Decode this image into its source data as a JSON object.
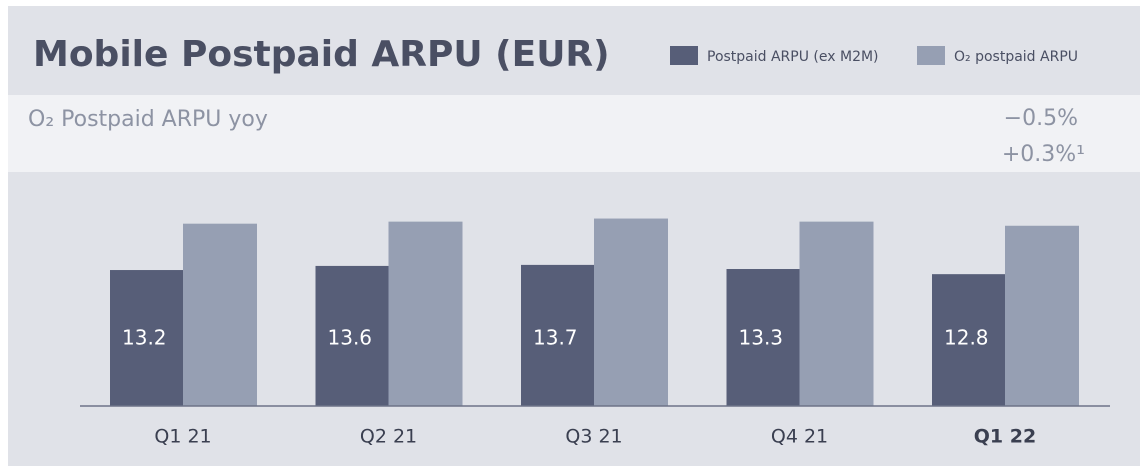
{
  "chart_data": {
    "type": "bar",
    "title": "Mobile Postpaid ARPU (EUR)",
    "annotation": "O₂ Postpaid ARPU yoy",
    "yoy": [
      "−0.5%",
      "+0.3%¹"
    ],
    "categories": [
      "Q1 21",
      "Q2 21",
      "Q3 21",
      "Q4 21",
      "Q1 22"
    ],
    "bold_category": 4,
    "series": [
      {
        "name": "Postpaid ARPU (ex M2M)",
        "color": "#575e78",
        "values": [
          13.2,
          13.6,
          13.7,
          13.3,
          12.8
        ]
      },
      {
        "name": "O₂ postpaid ARPU",
        "color": "#969fb3",
        "values": [
          17.7,
          17.9,
          18.2,
          17.9,
          17.5
        ]
      }
    ]
  }
}
